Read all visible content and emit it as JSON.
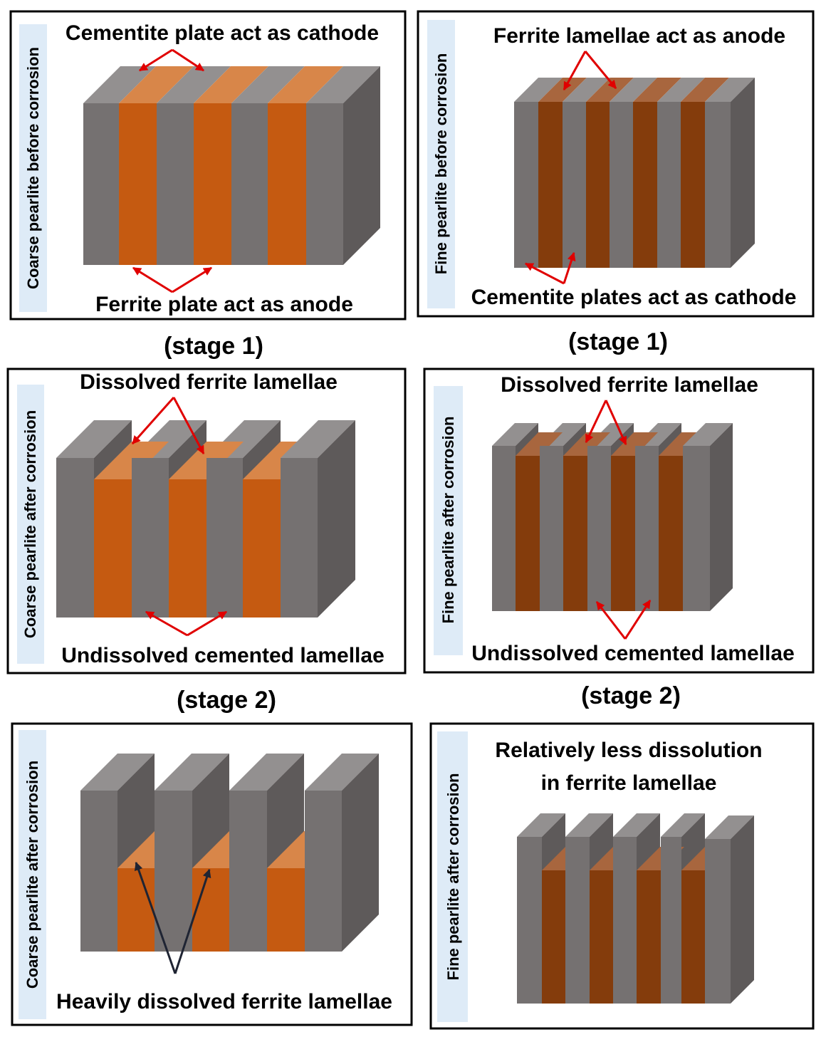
{
  "colors": {
    "ferrite_coarse": "#C55A11",
    "ferrite_coarse_top": "#D88649",
    "ferrite_fine": "#843C0C",
    "ferrite_fine_top": "#A8663E",
    "cementite_front": "#757171",
    "cementite_top": "#939090",
    "cementite_side": "#5E5A5A",
    "arrow_red": "#E00000",
    "arrow_dark": "#1F2433",
    "side_label_bg": "#DEEBF7"
  },
  "panels": [
    {
      "side_label": "Coarse pearlite before corrosion",
      "labels": [
        "Cementite plate act as cathode",
        "Ferrite plate act as anode"
      ]
    },
    {
      "side_label": "Fine pearlite before corrosion",
      "labels": [
        "Ferrite lamellae act as anode",
        "Cementite plates act as cathode"
      ]
    },
    {
      "side_label": "Coarse pearlite after corrosion",
      "labels": [
        "Dissolved ferrite lamellae",
        "Undissolved cemented lamellae"
      ]
    },
    {
      "side_label": "Fine  pearlite after corrosion",
      "labels": [
        "Dissolved ferrite lamellae",
        "Undissolved cemented lamellae"
      ]
    },
    {
      "side_label": "Coarse pearlite after corrosion",
      "labels": [
        "Heavily dissolved ferrite lamellae"
      ]
    },
    {
      "side_label": "Fine  pearlite after corrosion",
      "labels": [
        "Relatively less dissolution",
        "in ferrite lamellae"
      ]
    }
  ],
  "stages": [
    "(stage 1)",
    "(stage 1)",
    "(stage 2)",
    "(stage 2)"
  ]
}
